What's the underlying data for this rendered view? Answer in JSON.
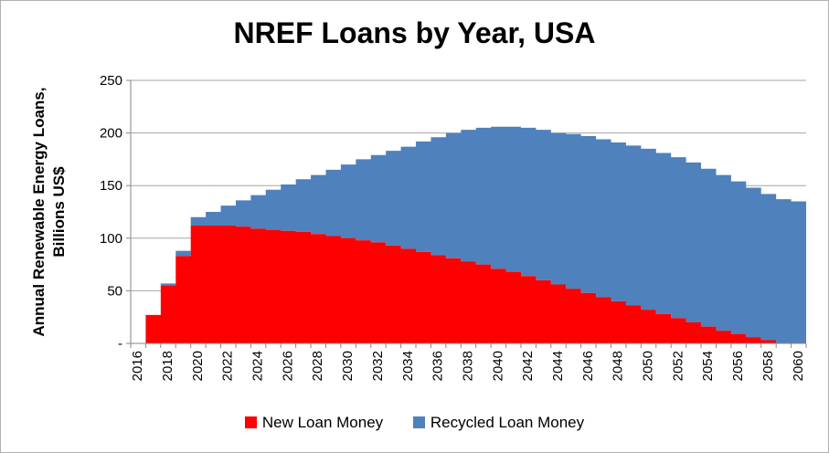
{
  "chart_data": {
    "type": "area",
    "title": "NREF Loans by Year, USA",
    "ylabel_line1": "Annual Renewable Energy Loans,",
    "ylabel_line2": "Billions US$",
    "xlabel": "",
    "ylim": [
      0,
      250
    ],
    "yticks": [
      0,
      50,
      100,
      150,
      200,
      250
    ],
    "ytick_labels": [
      "-",
      "50",
      "100",
      "150",
      "200",
      "250"
    ],
    "x": [
      2016,
      2017,
      2018,
      2019,
      2020,
      2021,
      2022,
      2023,
      2024,
      2025,
      2026,
      2027,
      2028,
      2029,
      2030,
      2031,
      2032,
      2033,
      2034,
      2035,
      2036,
      2037,
      2038,
      2039,
      2040,
      2041,
      2042,
      2043,
      2044,
      2045,
      2046,
      2047,
      2048,
      2049,
      2050,
      2051,
      2052,
      2053,
      2054,
      2055,
      2056,
      2057,
      2058,
      2059,
      2060
    ],
    "xtick_labels": [
      "2016",
      "2018",
      "2020",
      "2022",
      "2024",
      "2026",
      "2028",
      "2030",
      "2032",
      "2034",
      "2036",
      "2038",
      "2040",
      "2042",
      "2044",
      "2046",
      "2048",
      "2050",
      "2052",
      "2054",
      "2056",
      "2058",
      "2060"
    ],
    "grid": true,
    "legend_position": "bottom",
    "series": [
      {
        "name": "New Loan Money",
        "color": "#ff0000",
        "values": [
          0,
          27,
          55,
          83,
          112,
          112,
          112,
          111,
          109,
          108,
          107,
          106,
          104,
          102,
          100,
          98,
          96,
          93,
          90,
          87,
          84,
          81,
          78,
          75,
          71,
          68,
          64,
          60,
          56,
          52,
          48,
          44,
          40,
          36,
          32,
          28,
          24,
          20,
          16,
          12,
          9,
          6,
          3,
          0,
          0
        ]
      },
      {
        "name": "Recycled Loan Money",
        "color": "#4f81bd",
        "values": [
          0,
          0,
          2,
          5,
          8,
          13,
          19,
          25,
          32,
          38,
          44,
          50,
          56,
          63,
          70,
          77,
          83,
          90,
          97,
          105,
          112,
          119,
          125,
          130,
          135,
          138,
          141,
          143,
          144,
          147,
          149,
          150,
          151,
          152,
          153,
          153,
          153,
          152,
          150,
          148,
          145,
          142,
          139,
          137,
          135
        ]
      }
    ]
  }
}
